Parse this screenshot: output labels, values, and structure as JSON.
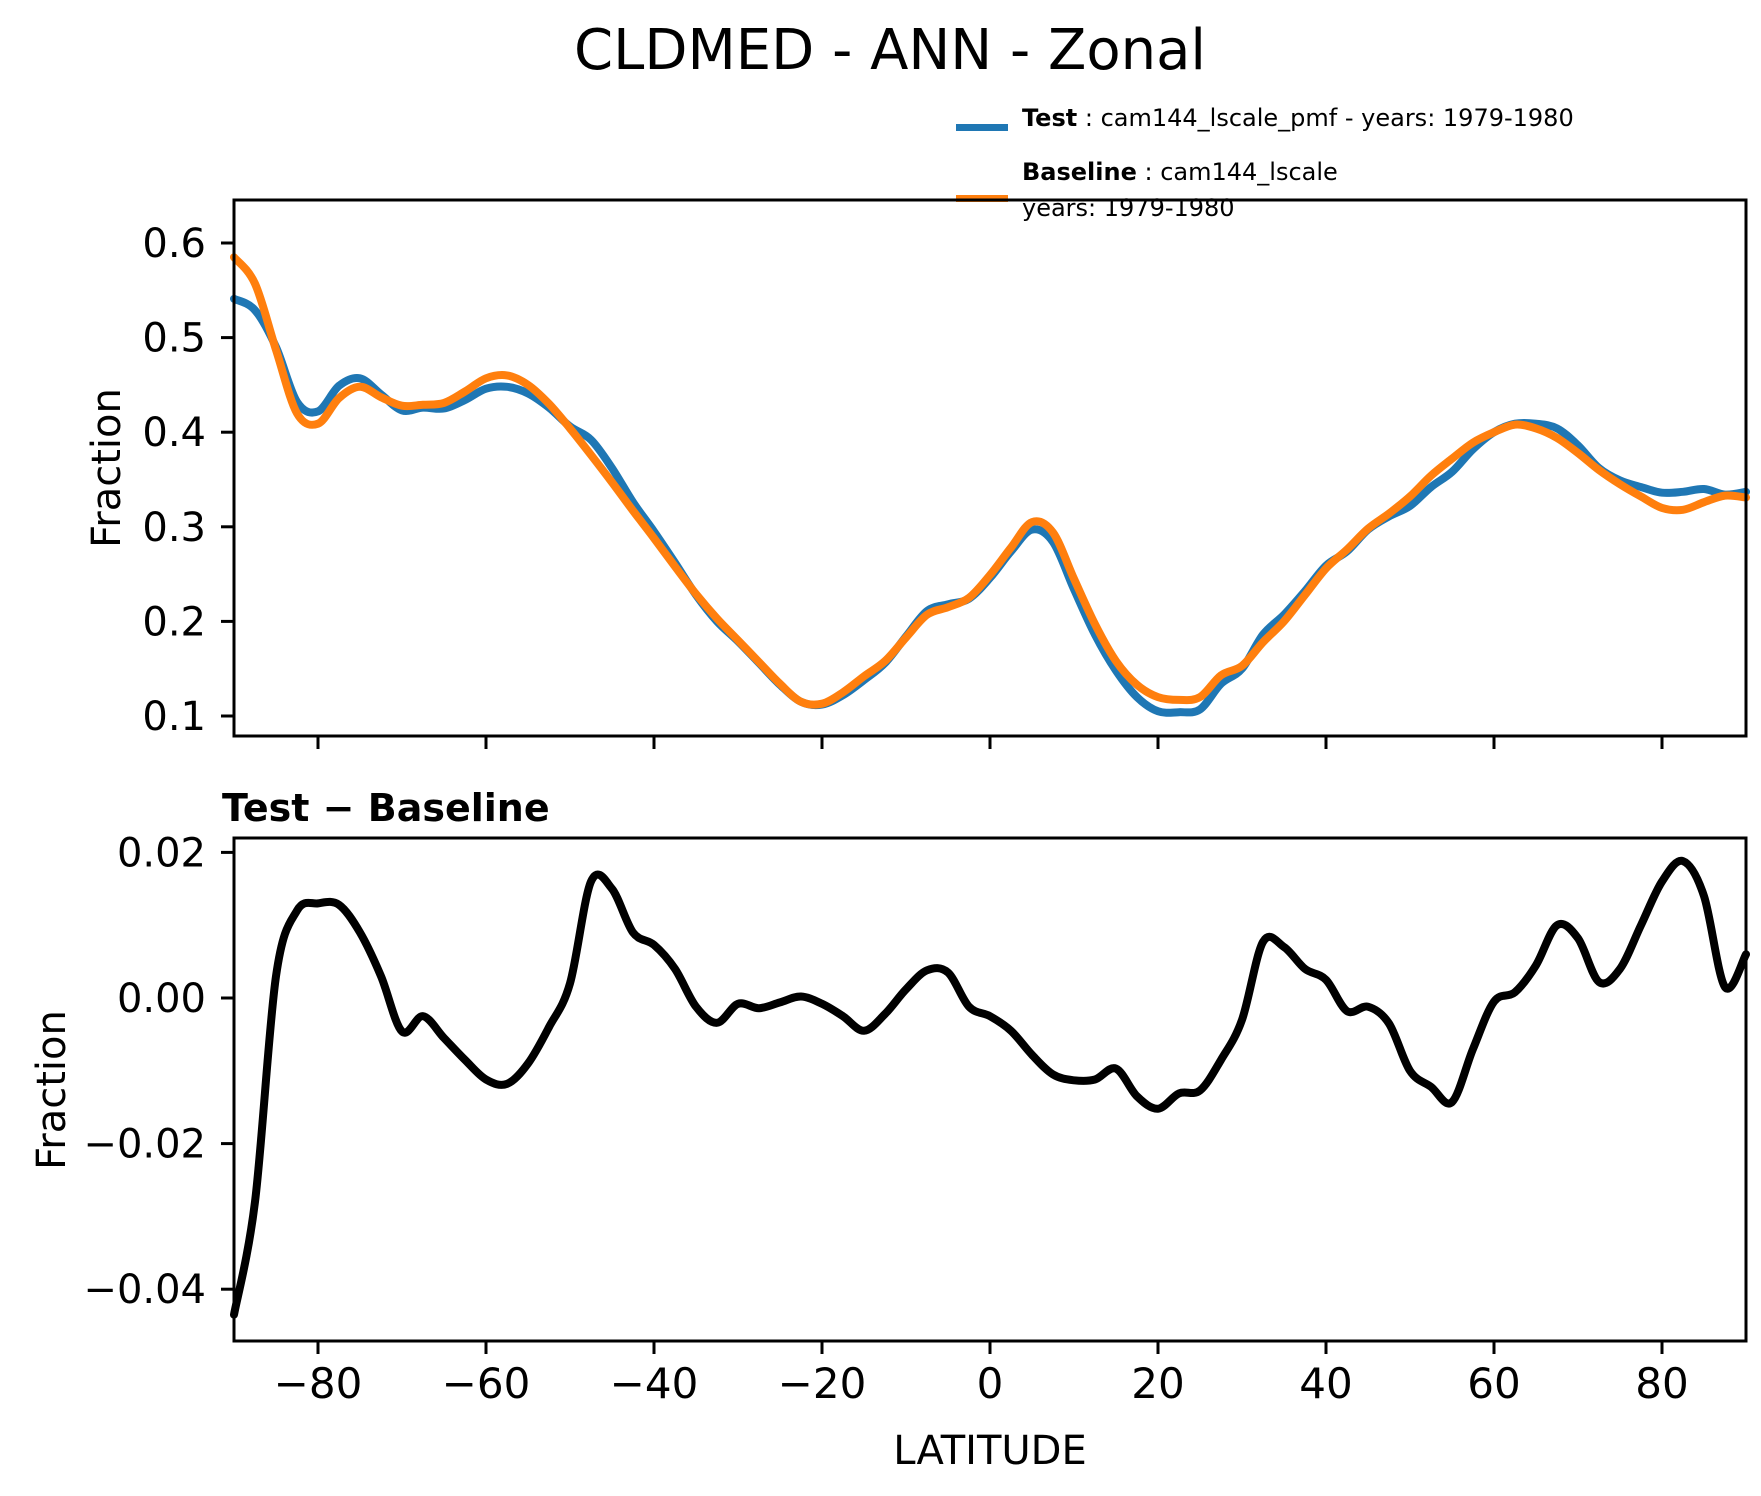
{
  "title": "CLDMED - ANN - Zonal",
  "legend": {
    "test_label": "Test",
    "test_rest": " : cam144_lscale_pmf - years: 1979-1980",
    "baseline_label": "Baseline",
    "baseline_rest": " : cam144_lscale",
    "baseline_years": "years: 1979-1980",
    "test_color": "#1f77b4",
    "baseline_color": "#ff7f0e"
  },
  "chart_data": [
    {
      "type": "line",
      "title": "",
      "xlabel": "",
      "ylabel": "Fraction",
      "grid": false,
      "legend_position": "upper right, outside axes",
      "xlim": [
        -90,
        90
      ],
      "ylim": [
        0.079,
        0.645
      ],
      "xticks": [
        -80,
        -60,
        -40,
        -20,
        0,
        20,
        40,
        60,
        80
      ],
      "xtick_labels": [
        "−80",
        "−60",
        "−40",
        "−20",
        "0",
        "20",
        "40",
        "60",
        "80"
      ],
      "yticks": [
        0.1,
        0.2,
        0.3,
        0.4,
        0.5,
        0.6
      ],
      "ytick_labels": [
        "0.1",
        "0.2",
        "0.3",
        "0.4",
        "0.5",
        "0.6"
      ],
      "x": [
        -90,
        -87.5,
        -85,
        -82.5,
        -80,
        -77.5,
        -75,
        -72.5,
        -70,
        -67.5,
        -65,
        -62.5,
        -60,
        -57.5,
        -55,
        -52.5,
        -50,
        -47.5,
        -45,
        -42.5,
        -40,
        -37.5,
        -35,
        -32.5,
        -30,
        -27.5,
        -25,
        -22.5,
        -20,
        -17.5,
        -15,
        -12.5,
        -10,
        -7.5,
        -5,
        -2.5,
        0,
        2.5,
        5,
        7.5,
        10,
        12.5,
        15,
        17.5,
        20,
        22.5,
        25,
        27.5,
        30,
        32.5,
        35,
        37.5,
        40,
        42.5,
        45,
        47.5,
        50,
        52.5,
        55,
        57.5,
        60,
        62.5,
        65,
        67.5,
        70,
        72.5,
        75,
        77.5,
        80,
        82.5,
        85,
        87.5,
        90
      ],
      "series": [
        {
          "name": "Test",
          "color": "#1f77b4",
          "values": [
            0.541,
            0.529,
            0.49,
            0.432,
            0.422,
            0.449,
            0.457,
            0.44,
            0.423,
            0.426,
            0.425,
            0.434,
            0.446,
            0.448,
            0.441,
            0.426,
            0.406,
            0.392,
            0.362,
            0.326,
            0.295,
            0.262,
            0.228,
            0.2,
            0.179,
            0.156,
            0.133,
            0.115,
            0.112,
            0.122,
            0.138,
            0.156,
            0.184,
            0.211,
            0.218,
            0.224,
            0.246,
            0.274,
            0.297,
            0.284,
            0.234,
            0.186,
            0.148,
            0.12,
            0.105,
            0.104,
            0.107,
            0.134,
            0.15,
            0.186,
            0.207,
            0.232,
            0.259,
            0.274,
            0.297,
            0.311,
            0.322,
            0.342,
            0.358,
            0.382,
            0.4,
            0.409,
            0.409,
            0.404,
            0.386,
            0.362,
            0.349,
            0.342,
            0.336,
            0.337,
            0.34,
            0.334,
            0.337
          ]
        },
        {
          "name": "Baseline",
          "color": "#ff7f0e",
          "values": [
            0.585,
            0.557,
            0.487,
            0.42,
            0.409,
            0.436,
            0.448,
            0.437,
            0.428,
            0.429,
            0.431,
            0.443,
            0.457,
            0.46,
            0.45,
            0.43,
            0.404,
            0.376,
            0.347,
            0.317,
            0.288,
            0.258,
            0.229,
            0.203,
            0.18,
            0.157,
            0.134,
            0.115,
            0.113,
            0.125,
            0.142,
            0.158,
            0.183,
            0.207,
            0.215,
            0.225,
            0.249,
            0.278,
            0.305,
            0.294,
            0.245,
            0.197,
            0.158,
            0.133,
            0.12,
            0.117,
            0.12,
            0.143,
            0.153,
            0.178,
            0.2,
            0.228,
            0.256,
            0.276,
            0.298,
            0.314,
            0.332,
            0.354,
            0.372,
            0.389,
            0.4,
            0.408,
            0.404,
            0.394,
            0.378,
            0.36,
            0.345,
            0.332,
            0.32,
            0.318,
            0.326,
            0.333,
            0.331
          ]
        }
      ]
    },
    {
      "type": "line",
      "title": "Test − Baseline",
      "xlabel": "LATITUDE",
      "ylabel": "Fraction",
      "grid": false,
      "xlim": [
        -90,
        90
      ],
      "ylim": [
        -0.0471,
        0.022
      ],
      "xticks": [
        -80,
        -60,
        -40,
        -20,
        0,
        20,
        40,
        60,
        80
      ],
      "xtick_labels": [
        "−80",
        "−60",
        "−40",
        "−20",
        "0",
        "20",
        "40",
        "60",
        "80"
      ],
      "yticks": [
        0.02,
        0.0,
        -0.02,
        -0.04
      ],
      "ytick_labels": [
        "0.02",
        "0.00",
        "−0.02",
        "−0.04"
      ],
      "x": [
        -90,
        -87.5,
        -85,
        -82.5,
        -80,
        -77.5,
        -75,
        -72.5,
        -70,
        -67.5,
        -65,
        -62.5,
        -60,
        -57.5,
        -55,
        -52.5,
        -50,
        -47.5,
        -45,
        -42.5,
        -40,
        -37.5,
        -35,
        -32.5,
        -30,
        -27.5,
        -25,
        -22.5,
        -20,
        -17.5,
        -15,
        -12.5,
        -10,
        -7.5,
        -5,
        -2.5,
        0,
        2.5,
        5,
        7.5,
        10,
        12.5,
        15,
        17.5,
        20,
        22.5,
        25,
        27.5,
        30,
        32.5,
        35,
        37.5,
        40,
        42.5,
        45,
        47.5,
        50,
        52.5,
        55,
        57.5,
        60,
        62.5,
        65,
        67.5,
        70,
        72.5,
        75,
        77.5,
        80,
        82.5,
        85,
        87.5,
        90
      ],
      "series": [
        {
          "name": "Test − Baseline",
          "color": "#000000",
          "values": [
            -0.0435,
            -0.028,
            0.003,
            0.012,
            0.013,
            0.0128,
            0.009,
            0.003,
            -0.0046,
            -0.0025,
            -0.0055,
            -0.0085,
            -0.0112,
            -0.0118,
            -0.009,
            -0.004,
            0.002,
            0.016,
            0.015,
            0.009,
            0.0073,
            0.004,
            -0.0012,
            -0.0034,
            -0.0008,
            -0.0014,
            -0.0006,
            0.0002,
            -0.0008,
            -0.0025,
            -0.0045,
            -0.0022,
            0.0012,
            0.0038,
            0.0035,
            -0.0012,
            -0.0025,
            -0.0045,
            -0.0078,
            -0.0105,
            -0.0113,
            -0.0112,
            -0.0097,
            -0.0135,
            -0.0152,
            -0.0131,
            -0.0127,
            -0.0085,
            -0.003,
            0.0077,
            0.007,
            0.004,
            0.0025,
            -0.0018,
            -0.0012,
            -0.0035,
            -0.01,
            -0.0122,
            -0.0143,
            -0.007,
            -0.0005,
            0.0008,
            0.0045,
            0.01,
            0.0082,
            0.0022,
            0.004,
            0.01,
            0.016,
            0.0188,
            0.014,
            0.0015,
            0.006
          ]
        }
      ]
    }
  ]
}
